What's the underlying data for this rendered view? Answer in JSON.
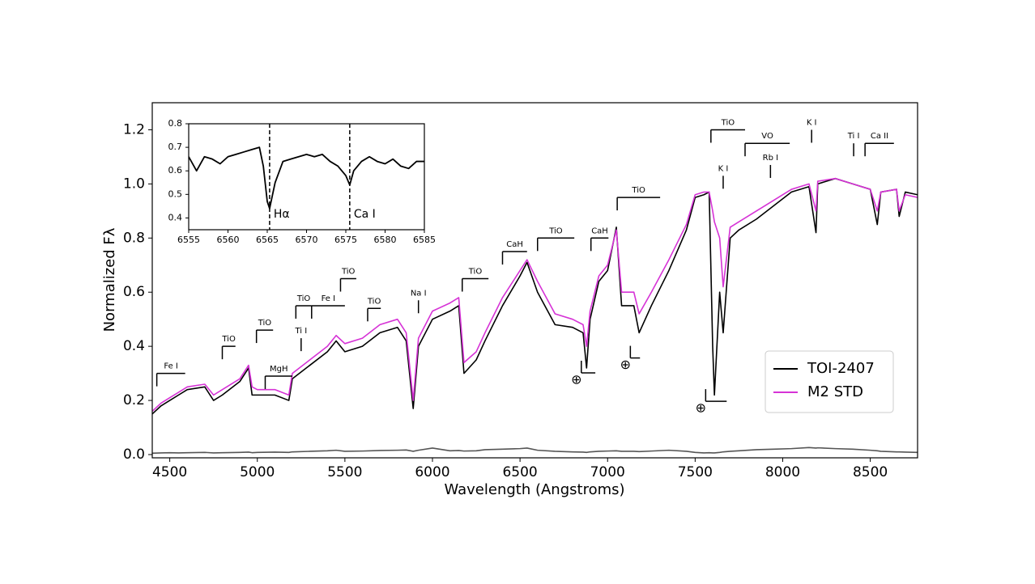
{
  "chart_data": [
    {
      "type": "line",
      "xlabel": "Wavelength (Angstroms)",
      "ylabel": "Normalized Fλ",
      "xlim": [
        4400,
        8770
      ],
      "ylim": [
        -0.012,
        1.3
      ],
      "xticks": [
        4500,
        5000,
        5500,
        6000,
        6500,
        7000,
        7500,
        8000,
        8500
      ],
      "yticks": [
        {
          "value": 0,
          "label": "0.0"
        },
        0.2,
        0.4,
        0.6,
        0.8,
        {
          "value": 1,
          "label": "1.0"
        },
        1.2
      ],
      "legend": "lower right",
      "x": [
        4400,
        4450,
        4500,
        4550,
        4600,
        4700,
        4750,
        4800,
        4900,
        4950,
        4970,
        5000,
        5100,
        5180,
        5200,
        5300,
        5400,
        5450,
        5500,
        5600,
        5700,
        5800,
        5850,
        5890,
        5920,
        6000,
        6100,
        6150,
        6180,
        6250,
        6300,
        6400,
        6500,
        6540,
        6600,
        6700,
        6800,
        6860,
        6880,
        6900,
        6950,
        7000,
        7050,
        7080,
        7150,
        7180,
        7250,
        7350,
        7450,
        7500,
        7550,
        7580,
        7600,
        7610,
        7640,
        7660,
        7700,
        7750,
        7850,
        7950,
        8050,
        8150,
        8190,
        8200,
        8300,
        8400,
        8500,
        8540,
        8560,
        8650,
        8665,
        8700,
        8770
      ],
      "series": [
        {
          "name": "TOI-2407",
          "color": "#000000",
          "values": [
            0.15,
            0.18,
            0.2,
            0.22,
            0.24,
            0.25,
            0.2,
            0.22,
            0.27,
            0.32,
            0.22,
            0.22,
            0.22,
            0.2,
            0.28,
            0.33,
            0.38,
            0.42,
            0.38,
            0.4,
            0.45,
            0.47,
            0.42,
            0.17,
            0.4,
            0.5,
            0.53,
            0.55,
            0.3,
            0.35,
            0.42,
            0.55,
            0.66,
            0.71,
            0.6,
            0.48,
            0.47,
            0.45,
            0.32,
            0.5,
            0.64,
            0.68,
            0.84,
            0.55,
            0.55,
            0.45,
            0.55,
            0.68,
            0.83,
            0.95,
            0.96,
            0.97,
            0.4,
            0.22,
            0.6,
            0.45,
            0.8,
            0.83,
            0.87,
            0.92,
            0.97,
            0.99,
            0.82,
            1.0,
            1.02,
            1.0,
            0.98,
            0.85,
            0.97,
            0.98,
            0.88,
            0.97,
            0.96
          ]
        },
        {
          "name": "M2 STD",
          "color": "#d633d6",
          "values": [
            0.16,
            0.19,
            0.21,
            0.23,
            0.25,
            0.26,
            0.22,
            0.24,
            0.28,
            0.33,
            0.25,
            0.24,
            0.24,
            0.22,
            0.3,
            0.35,
            0.4,
            0.44,
            0.41,
            0.43,
            0.48,
            0.5,
            0.45,
            0.2,
            0.43,
            0.53,
            0.56,
            0.58,
            0.34,
            0.38,
            0.45,
            0.58,
            0.68,
            0.72,
            0.64,
            0.52,
            0.5,
            0.48,
            0.4,
            0.53,
            0.66,
            0.7,
            0.83,
            0.6,
            0.6,
            0.52,
            0.6,
            0.72,
            0.85,
            0.96,
            0.97,
            0.97,
            0.9,
            0.86,
            0.8,
            0.62,
            0.84,
            0.86,
            0.9,
            0.94,
            0.98,
            1.0,
            0.9,
            1.01,
            1.02,
            1.0,
            0.98,
            0.9,
            0.97,
            0.98,
            0.9,
            0.96,
            0.95
          ]
        },
        {
          "color": "#555555",
          "values": [
            0.005,
            0.006,
            0.007,
            0.006,
            0.007,
            0.008,
            0.006,
            0.007,
            0.008,
            0.009,
            0.007,
            0.008,
            0.009,
            0.008,
            0.01,
            0.012,
            0.014,
            0.016,
            0.012,
            0.013,
            0.015,
            0.016,
            0.017,
            0.012,
            0.016,
            0.024,
            0.014,
            0.015,
            0.013,
            0.014,
            0.018,
            0.02,
            0.022,
            0.024,
            0.016,
            0.012,
            0.01,
            0.009,
            0.008,
            0.01,
            0.012,
            0.013,
            0.014,
            0.012,
            0.012,
            0.011,
            0.013,
            0.016,
            0.012,
            0.008,
            0.006,
            0.007,
            0.006,
            0.006,
            0.008,
            0.01,
            0.012,
            0.014,
            0.018,
            0.02,
            0.022,
            0.026,
            0.024,
            0.025,
            0.022,
            0.02,
            0.016,
            0.014,
            0.012,
            0.01,
            0.01,
            0.009,
            0.008
          ]
        }
      ],
      "annotations": [
        {
          "text": "Fe I",
          "x": 4426,
          "x2": 4588,
          "y": 0.3
        },
        {
          "text": "TiO",
          "x": 4800,
          "x2": 4875,
          "y": 0.4
        },
        {
          "text": "TiO",
          "x": 4995,
          "x2": 5090,
          "y": 0.46
        },
        {
          "text": "MgH",
          "x": 5045,
          "x2": 5200,
          "y": 0.29
        },
        {
          "text": "TiO",
          "x": 5220,
          "x2": 5310,
          "y": 0.55
        },
        {
          "text": "Ti I",
          "x": 5250,
          "x2": 5250,
          "y": 0.43
        },
        {
          "text": "Fe I",
          "x": 5310,
          "x2": 5500,
          "y": 0.55
        },
        {
          "text": "TiO",
          "x": 5475,
          "x2": 5565,
          "y": 0.65
        },
        {
          "text": "TiO",
          "x": 5630,
          "x2": 5705,
          "y": 0.54
        },
        {
          "text": "Na I",
          "x": 5920,
          "x2": 5920,
          "y": 0.57
        },
        {
          "text": "TiO",
          "x": 6170,
          "x2": 6320,
          "y": 0.65
        },
        {
          "text": "CaH",
          "x": 6400,
          "x2": 6540,
          "y": 0.75
        },
        {
          "text": "TiO",
          "x": 6600,
          "x2": 6810,
          "y": 0.8
        },
        {
          "text": "CaH",
          "x": 6905,
          "x2": 7005,
          "y": 0.8
        },
        {
          "text": "TiO",
          "x": 7055,
          "x2": 7300,
          "y": 0.95
        },
        {
          "text": "TiO",
          "x": 7590,
          "x2": 7785,
          "y": 1.2
        },
        {
          "text": "VO",
          "x": 7785,
          "x2": 8040,
          "y": 1.15
        },
        {
          "text": "K I",
          "x": 7660,
          "x2": 7660,
          "y": 1.03
        },
        {
          "text": "Rb I",
          "x": 7930,
          "x2": 7930,
          "y": 1.07
        },
        {
          "text": "K I",
          "x": 8165,
          "x2": 8165,
          "y": 1.2
        },
        {
          "text": "Ti I",
          "x": 8405,
          "x2": 8405,
          "y": 1.15
        },
        {
          "text": "Ca II",
          "x": 8470,
          "x2": 8635,
          "y": 1.15
        },
        {
          "text": "⊕",
          "x": 6850,
          "x2": 6930,
          "y": 0.275
        },
        {
          "text": "⊕",
          "x": 7130,
          "x2": 7185,
          "y": 0.33
        },
        {
          "text": "⊕",
          "x": 7560,
          "x2": 7680,
          "y": 0.17
        }
      ]
    },
    {
      "type": "line",
      "xlim": [
        6555,
        6585
      ],
      "ylim": [
        0.35,
        0.8
      ],
      "xticks": [
        6555,
        6560,
        6565,
        6570,
        6575,
        6580,
        6585
      ],
      "yticks": [
        0.4,
        0.5,
        0.6,
        0.7,
        0.8
      ],
      "x": [
        6555,
        6556,
        6557,
        6558,
        6559,
        6560,
        6561,
        6562,
        6563,
        6564,
        6564.5,
        6565,
        6565.3,
        6566,
        6567,
        6568,
        6569,
        6570,
        6571,
        6572,
        6573,
        6574,
        6575,
        6575.5,
        6576,
        6577,
        6578,
        6579,
        6580,
        6581,
        6582,
        6583,
        6584,
        6585
      ],
      "series": [
        {
          "color": "#000000",
          "values": [
            0.66,
            0.6,
            0.66,
            0.65,
            0.63,
            0.66,
            0.67,
            0.68,
            0.69,
            0.7,
            0.62,
            0.47,
            0.44,
            0.55,
            0.64,
            0.65,
            0.66,
            0.67,
            0.66,
            0.67,
            0.64,
            0.62,
            0.58,
            0.54,
            0.6,
            0.64,
            0.66,
            0.64,
            0.63,
            0.65,
            0.62,
            0.61,
            0.64,
            0.64
          ]
        }
      ],
      "vlines": [
        {
          "x": 6565.3,
          "text": "Hα"
        },
        {
          "x": 6575.5,
          "text": "Ca I"
        }
      ]
    }
  ]
}
